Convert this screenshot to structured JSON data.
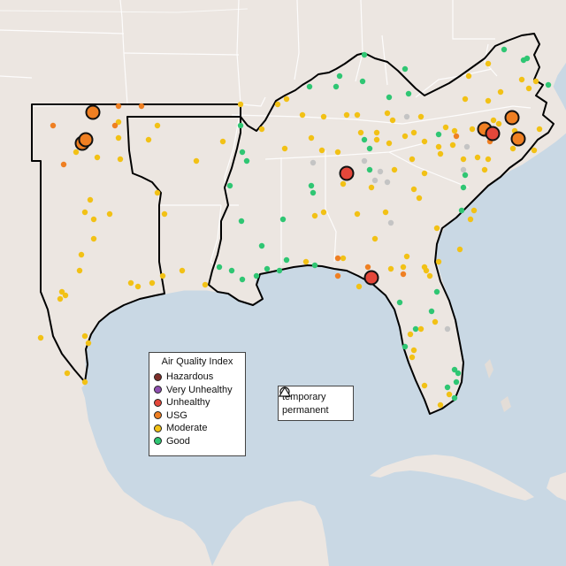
{
  "legend": {
    "title": "Air Quality Index",
    "categories": [
      {
        "label": "Hazardous",
        "color": "#7e2f2a"
      },
      {
        "label": "Very Unhealthy",
        "color": "#8f4fb0"
      },
      {
        "label": "Unhealthy",
        "color": "#e4473a"
      },
      {
        "label": "USG",
        "color": "#ef7f22"
      },
      {
        "label": "Moderate",
        "color": "#f2c115"
      },
      {
        "label": "Good",
        "color": "#2fc673"
      }
    ],
    "shapes": [
      {
        "label": "temporary",
        "shape": "circle"
      },
      {
        "label": "permanent",
        "shape": "triangle"
      }
    ]
  },
  "colors": {
    "water": "#c9d8e4",
    "land": "#ece6e1",
    "no_data": "#c4c4c4"
  }
}
